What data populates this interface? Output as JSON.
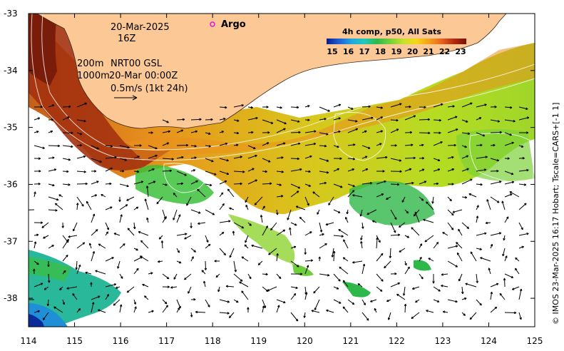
{
  "map": {
    "lon_range": [
      114,
      125
    ],
    "lat_range": [
      -38.5,
      -33
    ],
    "x_ticks": [
      "114",
      "115",
      "116",
      "117",
      "118",
      "119",
      "120",
      "121",
      "122",
      "123",
      "124",
      "125"
    ],
    "y_ticks": [
      "-33",
      "-34",
      "-35",
      "-36",
      "-37",
      "-38"
    ],
    "land_color": "#fbc896",
    "sea_color": "#ffffff"
  },
  "annotations": {
    "date": "20-Mar-2025",
    "time": "16Z",
    "isobath_200": "200m",
    "isobath_1000": "1000m",
    "nrt_label": "NRT00 GSL",
    "nrt_time": "20-Mar 00:00Z",
    "scale_label": "0.5m/s (1kt 24h)",
    "argo_label": "Argo"
  },
  "colorbar": {
    "title": "4h comp, p50, All Sats",
    "labels": [
      "15",
      "16",
      "17",
      "18",
      "19",
      "20",
      "21",
      "22",
      "23"
    ],
    "colors": [
      "#0a1c8c",
      "#1f5fd6",
      "#1fa7e0",
      "#21c9b8",
      "#2fb84a",
      "#6fcf3a",
      "#c8e02a",
      "#f5d817",
      "#f5a21a",
      "#e8651c",
      "#b52c10",
      "#7a1208"
    ]
  },
  "credit": "© IMOS 23-Mar-2025 16:17 Hobart; Tscale=CARS+[-1 1]"
}
